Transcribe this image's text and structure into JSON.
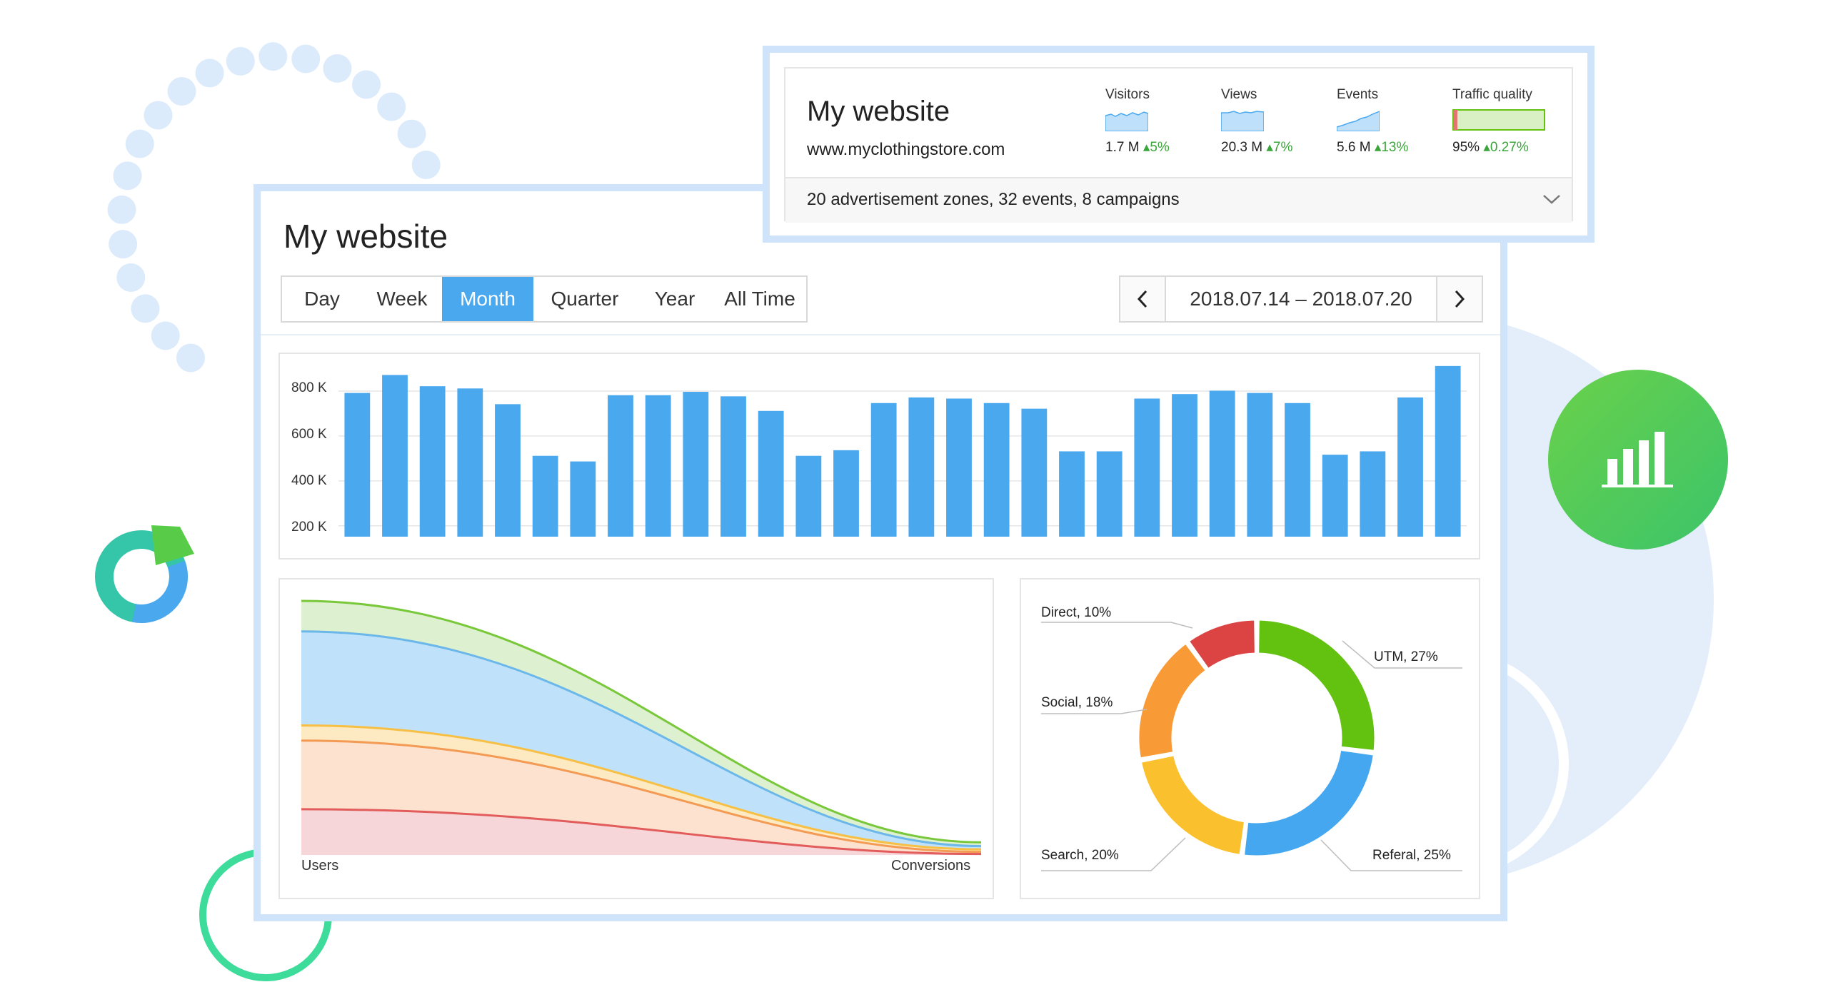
{
  "main": {
    "title": "My website",
    "tabs": [
      {
        "label": "Day",
        "active": false
      },
      {
        "label": "Week",
        "active": false
      },
      {
        "label": "Month",
        "active": true
      },
      {
        "label": "Quarter",
        "active": false
      },
      {
        "label": "Year",
        "active": false
      },
      {
        "label": "All Time",
        "active": false
      }
    ],
    "date_range": "2018.07.14 – 2018.07.20",
    "prev_icon": "chevron-left-icon",
    "next_icon": "chevron-right-icon"
  },
  "summary": {
    "title": "My website",
    "url": "www.myclothingstore.com",
    "metrics": [
      {
        "label": "Visitors",
        "value": "1.7 M",
        "delta": "▴5%"
      },
      {
        "label": "Views",
        "value": "20.3 M",
        "delta": "▴7%"
      },
      {
        "label": "Events",
        "value": "5.6 M",
        "delta": "▴13%"
      },
      {
        "label": "Traffic quality",
        "value": "95%",
        "delta": "▴0.27%"
      }
    ],
    "description": "20 advertisement zones, 32 events, 8 campaigns",
    "expand_icon": "chevron-down-icon"
  },
  "chart_data": [
    {
      "type": "bar",
      "yticks": [
        "800 K",
        "600 K",
        "400 K",
        "200 K"
      ],
      "ylim": [
        150,
        900
      ],
      "values": [
        790,
        870,
        820,
        810,
        740,
        510,
        485,
        780,
        780,
        795,
        775,
        710,
        510,
        535,
        745,
        770,
        765,
        745,
        720,
        530,
        530,
        765,
        785,
        800,
        790,
        745,
        515,
        530,
        770,
        910
      ],
      "color": "#4aa8ef",
      "grid": true
    },
    {
      "type": "area",
      "categories": [
        "Users",
        "Conversions"
      ],
      "series": [
        {
          "color": "#78c83a",
          "values": [
            100,
            5
          ]
        },
        {
          "color": "#6cb7ea",
          "values": [
            88,
            3.5
          ]
        },
        {
          "color": "#f7c045",
          "values": [
            51,
            2.2
          ]
        },
        {
          "color": "#f39a54",
          "values": [
            45,
            1.2
          ]
        },
        {
          "color": "#e25c5c",
          "values": [
            18,
            0.4
          ]
        }
      ]
    },
    {
      "type": "pie",
      "slices": [
        {
          "label": "UTM, 27%",
          "value": 27,
          "color": "#63c10f"
        },
        {
          "label": "Referal, 25%",
          "value": 25,
          "color": "#45a7ef"
        },
        {
          "label": "Search, 20%",
          "value": 20,
          "color": "#fbc02d"
        },
        {
          "label": "Social, 18%",
          "value": 18,
          "color": "#f89a35"
        },
        {
          "label": "Direct, 10%",
          "value": 10,
          "color": "#dc4444"
        }
      ]
    }
  ],
  "decor": {
    "chart_icon": "bar-chart-icon",
    "donut_icon": "donut-chart-icon"
  }
}
